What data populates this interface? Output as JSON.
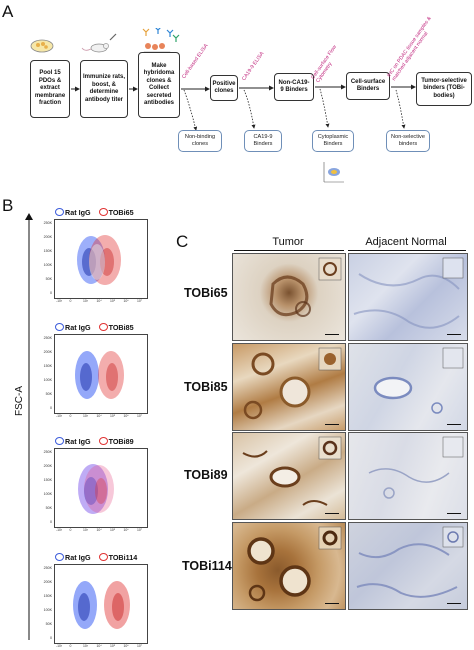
{
  "panels": {
    "a": "A",
    "b": "B",
    "c": "C"
  },
  "workflow": {
    "steps": [
      {
        "text": "Pool 15 PDOs & extract membrane fraction"
      },
      {
        "text": "Immunize rats, boost, & determine antibody titer"
      },
      {
        "text": "Make hybridoma clones & Collect secreted antibodies"
      },
      {
        "text": "Positive clones"
      },
      {
        "text": "Non-CA19-9 Binders"
      },
      {
        "text": "Cell-surface Binders"
      },
      {
        "text": "Tumor-selective binders (TOBi-bodies)"
      }
    ],
    "transition_labels": [
      "Cell-based ELISA",
      "CA19-9 ELISA",
      "Cell-surface Flow Cytometry",
      "IHC on PDAC tissue samples & matched adjacent normal"
    ],
    "outputs": [
      "Non-binding clones",
      "CA19-9 Binders",
      "Cytoplasmic Binders",
      "Non-selective binders"
    ],
    "colors": {
      "label": "#c0267d",
      "output_border": "#6f8fb8",
      "box_border": "#333333"
    }
  },
  "flow": {
    "y_axis_label": "FSC-A",
    "y_ticks": [
      "250K",
      "200K",
      "150K",
      "100K",
      "50K",
      "0"
    ],
    "x_ticks": [
      "-10³",
      "0",
      "10³",
      "10⁴",
      "10⁵",
      "10⁶",
      "10⁷"
    ],
    "control_label": "Rat IgG",
    "control_color": "#3b5bdb",
    "test_color": "#e03131",
    "plots": [
      {
        "antibody": "TOBi65"
      },
      {
        "antibody": "TOBi85"
      },
      {
        "antibody": "TOBi89"
      },
      {
        "antibody": "TOBi114"
      }
    ]
  },
  "ihc": {
    "columns": [
      "Tumor",
      "Adjacent Normal"
    ],
    "rows": [
      "TOBi65",
      "TOBi85",
      "TOBi89",
      "TOBi114"
    ]
  }
}
